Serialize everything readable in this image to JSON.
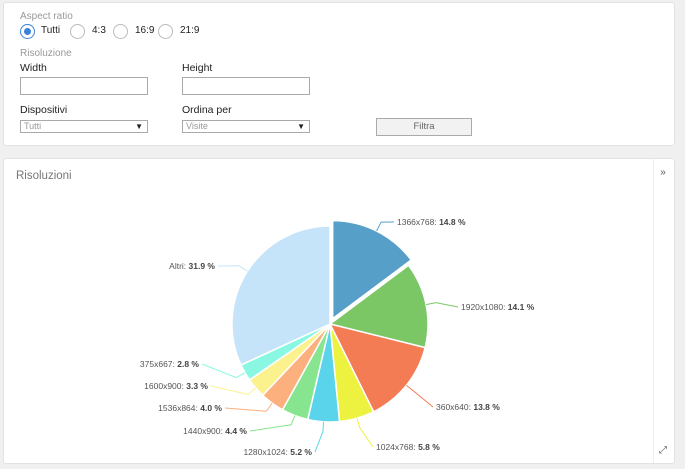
{
  "filters": {
    "aspect_ratio_label": "Aspect ratio",
    "aspect_options": [
      {
        "label": "Tutti",
        "checked": true
      },
      {
        "label": "4:3",
        "checked": false
      },
      {
        "label": "16:9",
        "checked": false
      },
      {
        "label": "21:9",
        "checked": false
      }
    ],
    "resolution_label": "Risoluzione",
    "width_label": "Width",
    "width_value": "",
    "height_label": "Height",
    "height_value": "",
    "devices_label": "Dispositivi",
    "devices_value": "Tutti",
    "order_label": "Ordina per",
    "order_value": "Visite",
    "filter_button": "Filtra"
  },
  "chart_panel": {
    "title": "Risoluzioni",
    "expand_icon": "double-chevron-right-icon",
    "fullscreen_icon": "expand-diagonal-icon"
  },
  "chart_data": {
    "type": "pie",
    "unit": "%",
    "slices": [
      {
        "label": "1366x768",
        "value": 14.8,
        "color": "#559fc9"
      },
      {
        "label": "1920x1080",
        "value": 14.1,
        "color": "#7cc765"
      },
      {
        "label": "360x640",
        "value": 13.8,
        "color": "#f47c55"
      },
      {
        "label": "1024x768",
        "value": 5.8,
        "color": "#edf241"
      },
      {
        "label": "1280x1024",
        "value": 5.2,
        "color": "#5ad4ea"
      },
      {
        "label": "1440x900",
        "value": 4.4,
        "color": "#86e58e"
      },
      {
        "label": "1536x864",
        "value": 4.0,
        "color": "#fbb07e"
      },
      {
        "label": "1600x900",
        "value": 3.3,
        "color": "#fbf18d"
      },
      {
        "label": "375x667",
        "value": 2.8,
        "color": "#8af7e2"
      },
      {
        "label": "Altri",
        "value": 31.9,
        "color": "#c5e4fa"
      }
    ]
  }
}
